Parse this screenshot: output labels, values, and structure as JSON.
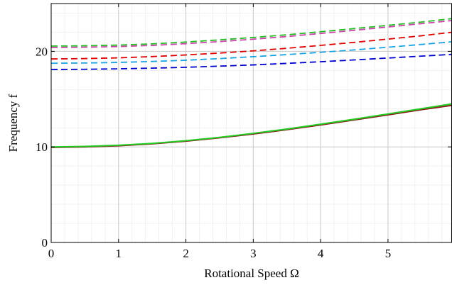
{
  "chart_data": {
    "type": "line",
    "xlabel": "Rotational Speed Ω",
    "ylabel": "Frequency f",
    "xlim": [
      0,
      5.95
    ],
    "ylim": [
      0,
      25
    ],
    "x_ticks": [
      0,
      1,
      2,
      3,
      4,
      5
    ],
    "y_ticks": [
      0,
      10,
      20
    ],
    "grid": true,
    "minor_grid": true,
    "x": [
      0,
      0.5,
      1,
      1.5,
      2,
      2.5,
      3,
      3.5,
      4,
      4.5,
      5,
      5.5,
      5.95
    ],
    "series": [
      {
        "style": "solid",
        "color": "#8a1c1c",
        "values": [
          9.95,
          10.0,
          10.12,
          10.32,
          10.6,
          10.95,
          11.35,
          11.8,
          12.3,
          12.82,
          13.35,
          13.9,
          14.35
        ]
      },
      {
        "style": "solid",
        "color": "#22cc22",
        "values": [
          10.0,
          10.05,
          10.17,
          10.37,
          10.65,
          11.0,
          11.42,
          11.87,
          12.38,
          12.9,
          13.45,
          14.0,
          14.5
        ]
      },
      {
        "style": "dashed",
        "color": "#0000cc",
        "values": [
          18.1,
          18.12,
          18.17,
          18.24,
          18.33,
          18.45,
          18.58,
          18.74,
          18.91,
          19.1,
          19.3,
          19.5,
          19.68
        ]
      },
      {
        "style": "dashed",
        "color": "#1aa3e0",
        "values": [
          18.75,
          18.78,
          18.84,
          18.94,
          19.07,
          19.24,
          19.44,
          19.66,
          19.9,
          20.15,
          20.43,
          20.72,
          21.0
        ]
      },
      {
        "style": "dashed",
        "color": "#dd0000",
        "values": [
          19.2,
          19.24,
          19.32,
          19.45,
          19.62,
          19.82,
          20.05,
          20.32,
          20.62,
          20.94,
          21.28,
          21.63,
          22.0
        ]
      },
      {
        "style": "dashed",
        "color": "#cc44aa",
        "values": [
          20.4,
          20.43,
          20.5,
          20.62,
          20.8,
          21.02,
          21.27,
          21.55,
          21.87,
          22.2,
          22.55,
          22.9,
          23.22
        ]
      },
      {
        "style": "dashed",
        "color": "#22bb22",
        "values": [
          20.55,
          20.58,
          20.65,
          20.78,
          20.97,
          21.2,
          21.45,
          21.73,
          22.05,
          22.38,
          22.72,
          23.07,
          23.42
        ]
      }
    ]
  }
}
